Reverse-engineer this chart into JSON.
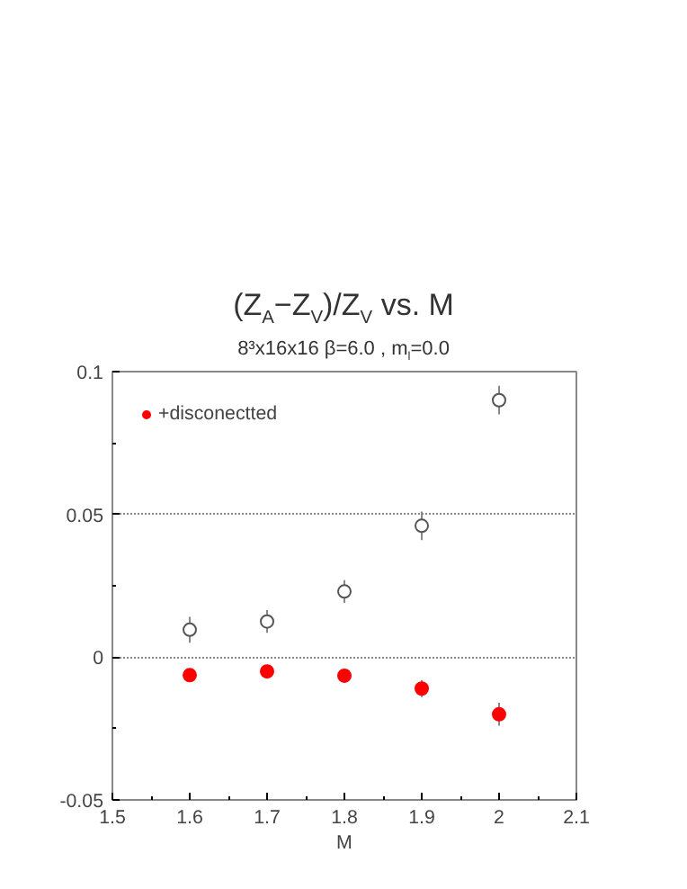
{
  "chart_data": {
    "type": "scatter",
    "title": "(Z$_{A}$−Z$_{V}$)/Z$_{V}$ vs. M",
    "subtitle": "8³x16x16  β=6.0 , m$_{l}$=0.0",
    "xlabel": "M",
    "x": [
      1.6,
      1.7,
      1.8,
      1.9,
      2.0
    ],
    "series": [
      {
        "color": "#555555",
        "marker": "circle_open",
        "values": [
          0.0096,
          0.0125,
          0.023,
          0.046,
          0.09
        ],
        "errors": [
          0.0045,
          0.004,
          0.004,
          0.005,
          0.005
        ]
      },
      {
        "name": "+disconectted",
        "color": "#ff0000",
        "marker": "circle",
        "values": [
          -0.0063,
          -0.005,
          -0.0065,
          -0.011,
          -0.02
        ],
        "errors": [
          null,
          null,
          null,
          0.003,
          0.004
        ]
      }
    ],
    "xlim": [
      1.5,
      2.1
    ],
    "xticks": [
      1.5,
      1.6,
      1.7,
      1.8,
      1.9,
      2,
      2.1
    ],
    "ylim": [
      -0.05,
      0.1
    ],
    "yticks": [
      -0.05,
      {
        "value": 0,
        "label": "0"
      },
      0.05,
      0.1
    ],
    "grid": "y",
    "legend": "top left"
  }
}
